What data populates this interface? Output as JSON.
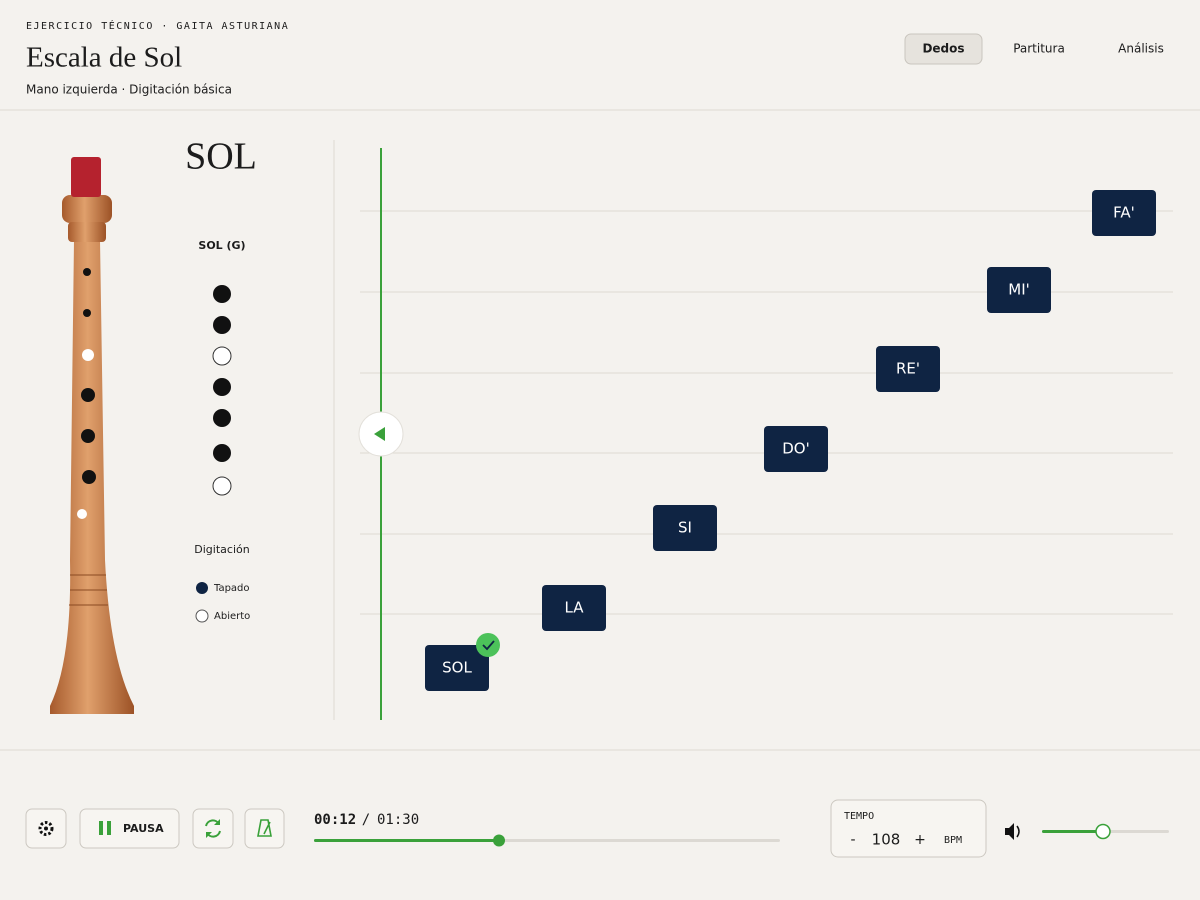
{
  "header": {
    "eyebrow": "EJERCICIO TÉCNICO · GAITA ASTURIANA",
    "title": "Escala de Sol",
    "subtitle": "Mano izquierda · Digitación básica"
  },
  "tabs": [
    "Dedos",
    "Partitura",
    "Análisis"
  ],
  "note_panel": {
    "name": "SOL",
    "label": "SOL (G)",
    "legend_title": "Digitación",
    "legend_closed": "Tapado",
    "legend_open": "Abierto"
  },
  "notes": [
    "SOL",
    "LA",
    "SI",
    "DO'",
    "RE'",
    "MI'",
    "FA'"
  ],
  "transport": {
    "pause": "PAUSA",
    "elapsed": "00:12",
    "separator": "/",
    "total": "01:30"
  },
  "tempo": {
    "label": "TEMPO",
    "minus": "-",
    "value": 108,
    "plus": "+",
    "unit": "BPM"
  }
}
